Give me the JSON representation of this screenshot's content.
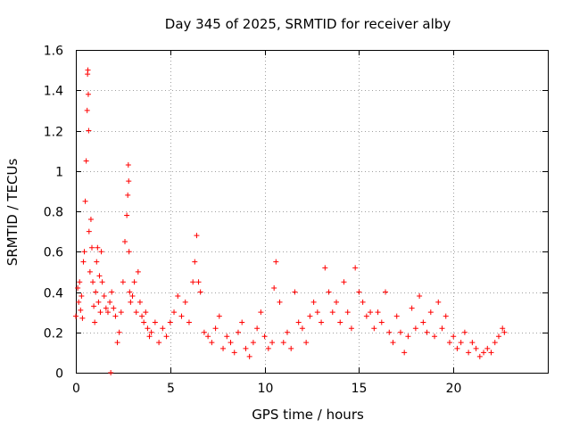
{
  "chart_data": {
    "type": "scatter",
    "title": "Day 345 of 2025, SRMTID for receiver alby",
    "xlabel": "GPS time / hours",
    "ylabel": "SRMTID / TECUs",
    "xlim": [
      0,
      25
    ],
    "ylim": [
      0,
      1.6
    ],
    "xticks": [
      0,
      5,
      10,
      15,
      20
    ],
    "xtick_labels": [
      "0",
      "5",
      "10",
      "15",
      "20"
    ],
    "yticks": [
      0,
      0.2,
      0.4,
      0.6,
      0.8,
      1.0,
      1.2,
      1.4,
      1.6
    ],
    "ytick_labels": [
      "0",
      "0.2",
      "0.4",
      "0.6",
      "0.8",
      "1",
      "1.2",
      "1.4",
      "1.6"
    ],
    "grid": true,
    "marker": "+",
    "color": "#ff0000",
    "series": [
      {
        "name": "SRMTID",
        "x": [
          0.0,
          0.1,
          0.15,
          0.2,
          0.25,
          0.3,
          0.35,
          0.4,
          0.45,
          0.5,
          0.55,
          0.6,
          0.62,
          0.64,
          0.66,
          0.68,
          0.7,
          0.75,
          0.8,
          0.85,
          0.9,
          0.95,
          1.0,
          1.05,
          1.1,
          1.15,
          1.2,
          1.25,
          1.3,
          1.35,
          1.4,
          1.5,
          1.6,
          1.7,
          1.8,
          1.85,
          1.9,
          2.0,
          2.1,
          2.2,
          2.3,
          2.4,
          2.5,
          2.6,
          2.7,
          2.75,
          2.78,
          2.8,
          2.82,
          2.85,
          2.9,
          3.0,
          3.1,
          3.2,
          3.3,
          3.4,
          3.5,
          3.6,
          3.7,
          3.8,
          3.9,
          4.0,
          4.2,
          4.4,
          4.6,
          4.8,
          5.0,
          5.2,
          5.4,
          5.6,
          5.8,
          6.0,
          6.2,
          6.3,
          6.4,
          6.5,
          6.6,
          6.8,
          7.0,
          7.2,
          7.4,
          7.6,
          7.8,
          8.0,
          8.2,
          8.4,
          8.6,
          8.8,
          9.0,
          9.2,
          9.4,
          9.6,
          9.8,
          10.0,
          10.2,
          10.4,
          10.5,
          10.6,
          10.8,
          11.0,
          11.2,
          11.4,
          11.6,
          11.8,
          12.0,
          12.2,
          12.4,
          12.6,
          12.8,
          13.0,
          13.2,
          13.4,
          13.6,
          13.8,
          14.0,
          14.2,
          14.4,
          14.6,
          14.8,
          15.0,
          15.2,
          15.4,
          15.6,
          15.8,
          16.0,
          16.2,
          16.4,
          16.6,
          16.8,
          17.0,
          17.2,
          17.4,
          17.6,
          17.8,
          18.0,
          18.2,
          18.4,
          18.6,
          18.8,
          19.0,
          19.2,
          19.4,
          19.6,
          19.8,
          20.0,
          20.2,
          20.4,
          20.6,
          20.8,
          21.0,
          21.2,
          21.4,
          21.6,
          21.8,
          22.0,
          22.2,
          22.4,
          22.6,
          22.7
        ],
        "y": [
          0.28,
          0.42,
          0.35,
          0.45,
          0.31,
          0.38,
          0.27,
          0.55,
          0.6,
          0.85,
          1.05,
          1.3,
          1.48,
          1.5,
          1.38,
          1.2,
          0.7,
          0.5,
          0.76,
          0.62,
          0.45,
          0.33,
          0.25,
          0.4,
          0.55,
          0.62,
          0.35,
          0.48,
          0.3,
          0.6,
          0.45,
          0.38,
          0.32,
          0.3,
          0.35,
          0.0,
          0.4,
          0.32,
          0.28,
          0.15,
          0.2,
          0.3,
          0.45,
          0.65,
          0.78,
          0.88,
          1.03,
          0.95,
          0.6,
          0.4,
          0.35,
          0.38,
          0.45,
          0.3,
          0.5,
          0.35,
          0.28,
          0.25,
          0.3,
          0.22,
          0.18,
          0.2,
          0.25,
          0.15,
          0.22,
          0.18,
          0.25,
          0.3,
          0.38,
          0.28,
          0.35,
          0.25,
          0.45,
          0.55,
          0.68,
          0.45,
          0.4,
          0.2,
          0.18,
          0.15,
          0.22,
          0.28,
          0.12,
          0.18,
          0.15,
          0.1,
          0.2,
          0.25,
          0.12,
          0.08,
          0.15,
          0.22,
          0.3,
          0.18,
          0.12,
          0.15,
          0.42,
          0.55,
          0.35,
          0.15,
          0.2,
          0.12,
          0.4,
          0.25,
          0.22,
          0.15,
          0.28,
          0.35,
          0.3,
          0.25,
          0.52,
          0.4,
          0.3,
          0.35,
          0.25,
          0.45,
          0.3,
          0.22,
          0.52,
          0.4,
          0.35,
          0.28,
          0.3,
          0.22,
          0.3,
          0.25,
          0.4,
          0.2,
          0.15,
          0.28,
          0.2,
          0.1,
          0.18,
          0.32,
          0.22,
          0.38,
          0.25,
          0.2,
          0.3,
          0.18,
          0.35,
          0.22,
          0.28,
          0.15,
          0.18,
          0.12,
          0.15,
          0.2,
          0.1,
          0.15,
          0.12,
          0.08,
          0.1,
          0.12,
          0.1,
          0.15,
          0.18,
          0.22,
          0.2
        ]
      }
    ]
  }
}
